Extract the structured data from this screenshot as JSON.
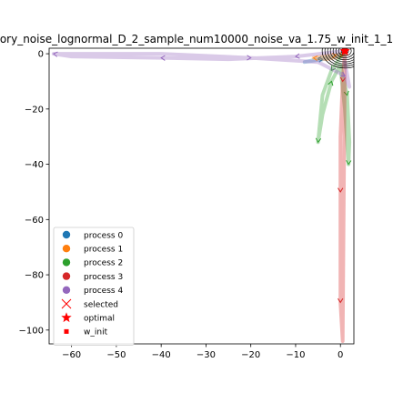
{
  "chart_data": {
    "type": "line",
    "title": "ory_noise_lognormal_D_2_sample_num10000_noise_va_1.75_w_init_1_1",
    "xlabel": "",
    "ylabel": "",
    "xlim": [
      -65,
      3
    ],
    "ylim": [
      -105,
      2
    ],
    "x_ticks": [
      -60,
      -50,
      -40,
      -30,
      -20,
      -10,
      0
    ],
    "y_ticks": [
      0,
      -20,
      -40,
      -60,
      -80,
      -100
    ],
    "x_tick_labels": [
      "−60",
      "−50",
      "−40",
      "−30",
      "−20",
      "−10",
      "0"
    ],
    "y_tick_labels": [
      "0",
      "−20",
      "−40",
      "−60",
      "−80",
      "−100"
    ],
    "grid": false,
    "legend_position": "lower-left",
    "series": [
      {
        "name": "process 0",
        "color": "#1f77b4",
        "x": [
          1,
          0.5,
          -2,
          -5,
          -8,
          -4,
          -1,
          0.5,
          1
        ],
        "y": [
          1,
          0,
          -1,
          -2,
          -3,
          -2,
          -1,
          -0.5,
          0
        ]
      },
      {
        "name": "process 1",
        "color": "#ff7f0e",
        "x": [
          1,
          0,
          -3,
          -6,
          -4,
          -1,
          0.5,
          1
        ],
        "y": [
          1,
          -1,
          -2,
          -1.5,
          -1,
          -0.5,
          0,
          0
        ]
      },
      {
        "name": "process 2",
        "color": "#2ca02c",
        "x": [
          1,
          -2,
          -4,
          -5,
          -4,
          -2,
          0,
          1.5,
          2,
          1.8,
          1,
          0
        ],
        "y": [
          1,
          -6,
          -15,
          -32,
          -22,
          -10,
          -4,
          -15,
          -32,
          -40,
          -20,
          -5
        ]
      },
      {
        "name": "process 3",
        "color": "#d62728",
        "x": [
          1,
          0.5,
          0,
          0,
          0,
          0,
          0.5,
          1
        ],
        "y": [
          1,
          -10,
          -30,
          -50,
          -70,
          -90,
          -104,
          0
        ]
      },
      {
        "name": "process 4",
        "color": "#9467bd",
        "x": [
          1,
          -10,
          -25,
          -40,
          -60,
          -64,
          -40,
          -20,
          -5,
          1,
          2,
          1
        ],
        "y": [
          1,
          -1,
          -2,
          -1.5,
          -1,
          0,
          0,
          -1.5,
          -3,
          -8,
          -12,
          -3
        ]
      }
    ],
    "optimal": {
      "x": 1,
      "y": 1,
      "color": "#ff0000"
    },
    "w_init": {
      "x": 1,
      "y": 1,
      "color": "#ff0000"
    },
    "legend": [
      {
        "label": "process 0",
        "marker": "circle",
        "color": "#1f77b4"
      },
      {
        "label": "process 1",
        "marker": "circle",
        "color": "#ff7f0e"
      },
      {
        "label": "process 2",
        "marker": "circle",
        "color": "#2ca02c"
      },
      {
        "label": "process 3",
        "marker": "circle",
        "color": "#d62728"
      },
      {
        "label": "process 4",
        "marker": "circle",
        "color": "#9467bd"
      },
      {
        "label": "selected",
        "marker": "x",
        "color": "#ff0000"
      },
      {
        "label": "optimal",
        "marker": "star",
        "color": "#ff0000"
      },
      {
        "label": "w_init",
        "marker": "square",
        "color": "#ff0000"
      }
    ]
  }
}
